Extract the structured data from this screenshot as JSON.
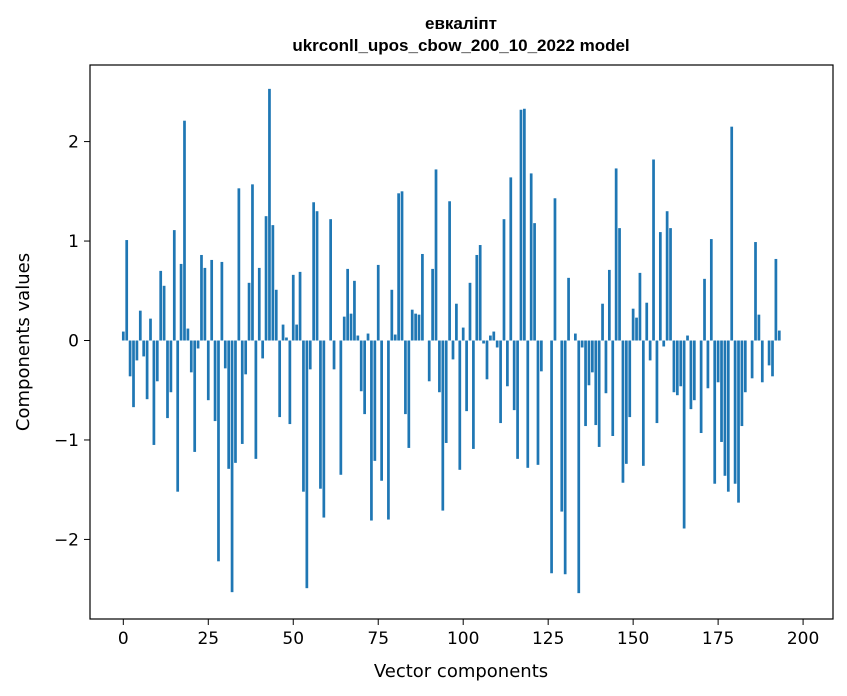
{
  "chart_data": {
    "type": "bar",
    "title": "евкаліпт",
    "subtitle": "ukrconll_upos_cbow_200_10_2022 model",
    "xlabel": "Vector components",
    "ylabel": "Components values",
    "xlim": [
      -9.8,
      208.8
    ],
    "ylim": [
      -2.8,
      2.77
    ],
    "xticks": [
      0,
      25,
      50,
      75,
      100,
      125,
      150,
      175,
      200
    ],
    "xtick_labels": [
      "0",
      "25",
      "50",
      "75",
      "100",
      "125",
      "150",
      "175",
      "200"
    ],
    "yticks": [
      -2,
      -1,
      0,
      1,
      2
    ],
    "ytick_labels": [
      "−2",
      "−1",
      "0",
      "1",
      "2"
    ],
    "grid": false,
    "bar_color": "#1f77b4",
    "series": [
      {
        "values": [
          0.09,
          1.01,
          -0.36,
          -0.67,
          -0.2,
          0.3,
          -0.16,
          -0.59,
          0.22,
          -1.05,
          -0.41,
          0.7,
          0.55,
          -0.78,
          -0.52,
          1.11,
          -1.52,
          0.77,
          2.21,
          0.12,
          -0.32,
          -1.12,
          -0.08,
          0.86,
          0.73,
          -0.6,
          0.81,
          -0.81,
          -2.22,
          0.79,
          -0.28,
          -1.29,
          -2.53,
          -1.23,
          1.53,
          -1.04,
          -0.34,
          0.58,
          1.57,
          -1.19,
          0.73,
          -0.18,
          1.25,
          2.53,
          1.16,
          0.51,
          -0.77,
          0.16,
          0.03,
          -0.84,
          0.66,
          0.16,
          0.69,
          -1.52,
          -2.49,
          -0.29,
          1.39,
          1.3,
          -1.49,
          -1.78,
          0.0,
          1.22,
          -0.29,
          0.0,
          -1.35,
          0.24,
          0.72,
          0.27,
          0.6,
          0.05,
          -0.51,
          -0.74,
          0.07,
          -1.81,
          -1.21,
          0.76,
          -1.41,
          0.0,
          -1.8,
          0.51,
          0.06,
          1.48,
          1.5,
          -0.74,
          -1.08,
          0.31,
          0.27,
          0.26,
          0.87,
          0.0,
          -0.41,
          0.72,
          1.72,
          -0.52,
          -1.71,
          -1.03,
          1.4,
          -0.19,
          0.37,
          -1.3,
          0.13,
          -0.71,
          0.58,
          -1.09,
          0.86,
          0.96,
          -0.03,
          -0.39,
          0.05,
          0.09,
          -0.07,
          -0.83,
          1.22,
          -0.46,
          1.64,
          -0.7,
          -1.19,
          2.32,
          2.33,
          -1.28,
          1.68,
          1.18,
          -1.25,
          -0.31,
          0.0,
          0.0,
          -2.34,
          1.43,
          0.0,
          -1.72,
          -2.35,
          0.63,
          0.0,
          0.07,
          -2.54,
          -0.07,
          -0.86,
          -0.45,
          -0.32,
          -0.85,
          -1.07,
          0.37,
          -0.53,
          0.71,
          -0.96,
          1.73,
          1.13,
          -1.43,
          -1.24,
          -0.77,
          0.32,
          0.23,
          0.68,
          -1.26,
          0.38,
          -0.2,
          1.82,
          -0.83,
          1.09,
          -0.06,
          1.3,
          1.13,
          -0.52,
          -0.55,
          -0.46,
          -1.89,
          0.05,
          -0.69,
          -0.6,
          0.0,
          -0.93,
          0.62,
          -0.48,
          1.02,
          -1.44,
          -0.42,
          -1.02,
          -1.36,
          -1.52,
          2.15,
          -1.44,
          -1.63,
          -0.86,
          -0.52,
          0.0,
          -0.38,
          0.99,
          0.26,
          -0.42,
          0.0,
          -0.25,
          -0.36,
          0.82,
          0.1
        ]
      }
    ]
  }
}
